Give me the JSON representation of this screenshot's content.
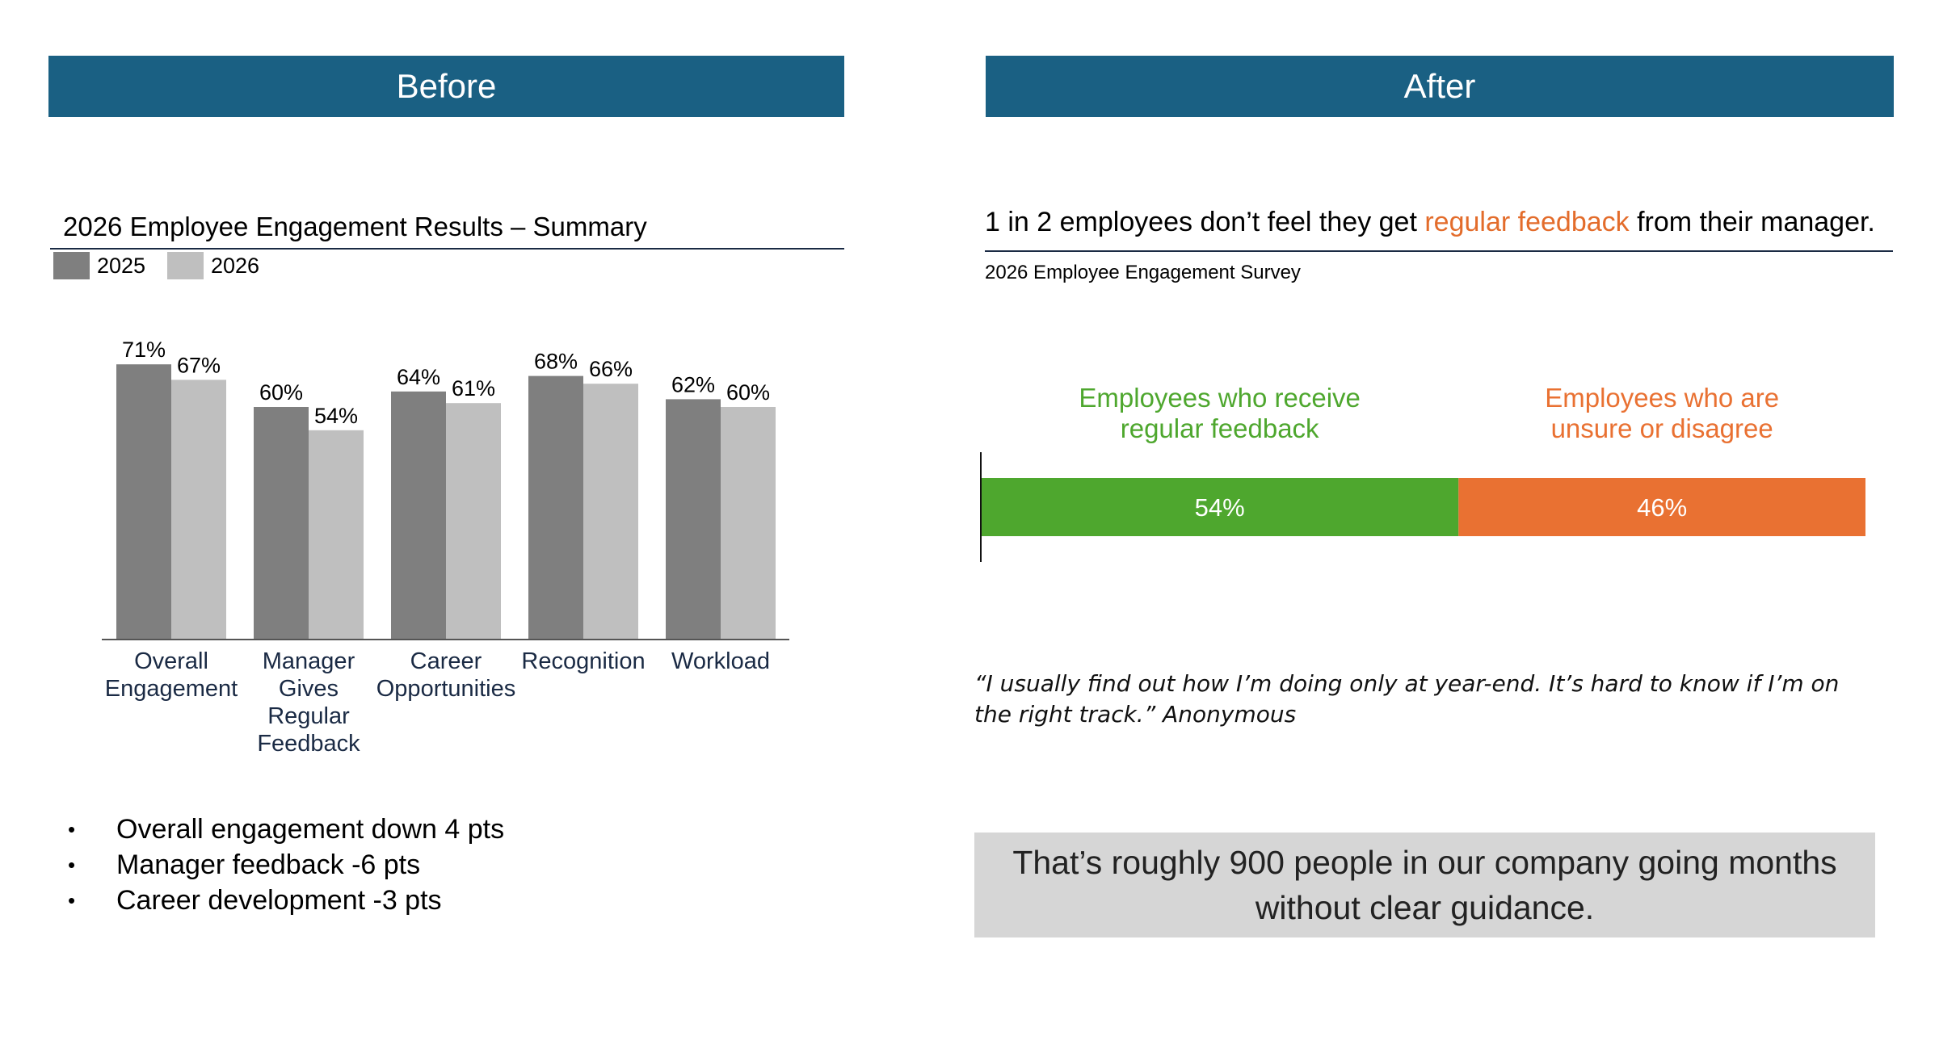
{
  "before": {
    "banner": "Before"
  },
  "after": {
    "banner": "After"
  },
  "chart_data": [
    {
      "type": "bar",
      "title": "2026 Employee Engagement Results – Summary",
      "categories": [
        [
          "Overall",
          "Engagement"
        ],
        [
          "Manager",
          "Gives",
          "Regular",
          "Feedback"
        ],
        [
          "Career",
          "Opportunities"
        ],
        [
          "Recognition"
        ],
        [
          "Workload"
        ]
      ],
      "series": [
        {
          "name": "2025",
          "color": "#7f7f7f",
          "values": [
            71,
            60,
            64,
            68,
            62
          ],
          "labels": [
            "71%",
            "60%",
            "64%",
            "68%",
            "62%"
          ]
        },
        {
          "name": "2026",
          "color": "#bfbfbf",
          "values": [
            67,
            54,
            61,
            66,
            60
          ],
          "labels": [
            "67%",
            "54%",
            "61%",
            "66%",
            "60%"
          ]
        }
      ],
      "ylim": [
        0,
        75
      ],
      "legend": "top-left",
      "grid": false
    },
    {
      "type": "bar",
      "orientation": "horizontal-stacked",
      "segments": [
        {
          "title": [
            "Employees who receive",
            "regular feedback"
          ],
          "value": 54,
          "label": "54%",
          "color": "#4ea72e"
        },
        {
          "title": [
            "Employees who are",
            "unsure or disagree"
          ],
          "value": 46,
          "label": "46%",
          "color": "#e97132"
        }
      ],
      "xlim": [
        0,
        100
      ]
    }
  ],
  "bullets": [
    "Overall engagement down 4 pts",
    "Manager feedback -6 pts",
    "Career development -3 pts"
  ],
  "bullet_glyph": "•",
  "headline": {
    "prefix": "1 in 2 employees don’t feel they get ",
    "accent": "regular feedback",
    "suffix": " from their manager.",
    "accent_color": "#e36c2b"
  },
  "source": "2026 Employee Engagement Survey",
  "quote": "“I usually find out how I’m doing only at year-end. It’s hard to know if I’m on the right track.” Anonymous",
  "callout": "That’s roughly 900 people in our company going months without clear guidance."
}
